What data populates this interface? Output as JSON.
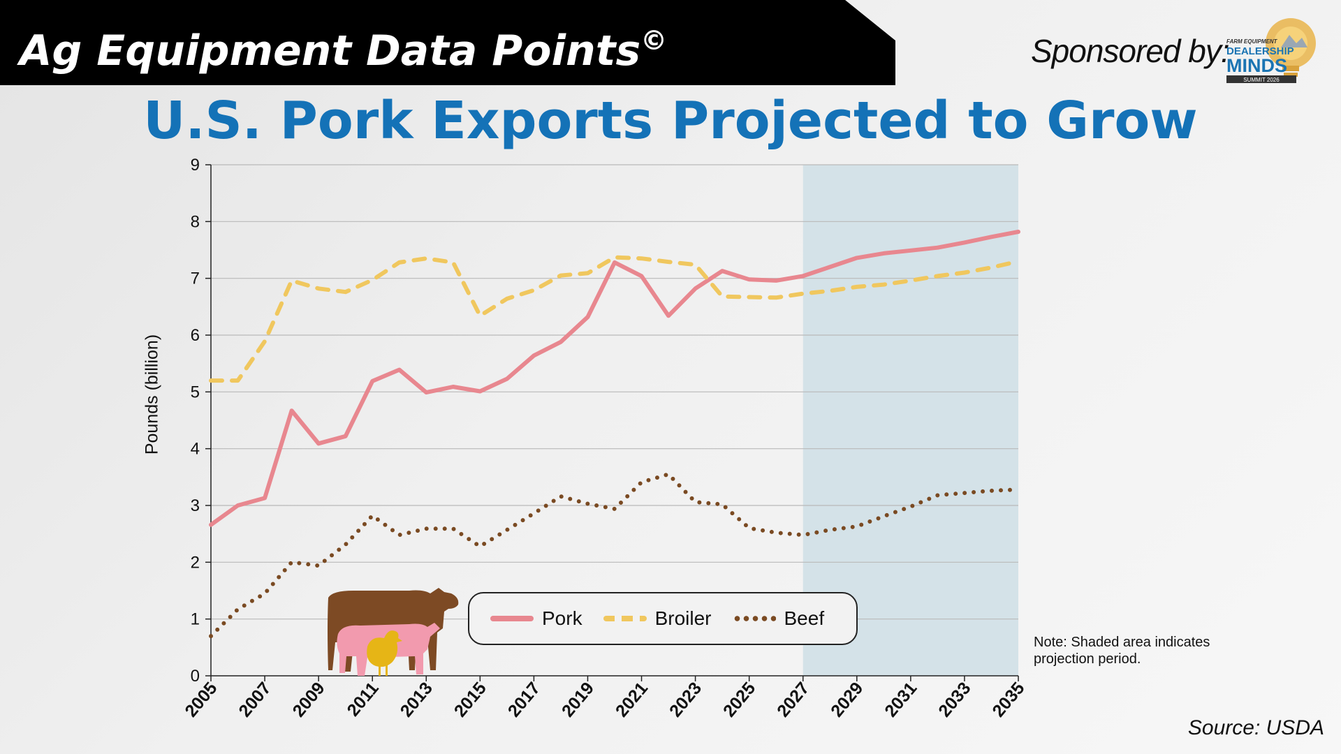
{
  "header": {
    "banner_title": "Ag Equipment Data Points",
    "banner_mark": "©",
    "sponsor_text": "Sponsored by:",
    "logo": {
      "line1": "FARM EQUIPMENT",
      "line2": "DEALERSHIP",
      "line3": "MINDS",
      "line4": "SUMMIT 2026",
      "icon": "lightbulb-gear-logo"
    }
  },
  "title": "U.S. Pork Exports Projected to Grow",
  "note": "Note: Shaded area indicates projection period.",
  "source": "Source: USDA",
  "colors": {
    "title": "#1472b7",
    "pork": "#e8878f",
    "broiler": "#f0c75e",
    "beef": "#7a4a22",
    "projection_shade": "#d4e2e8"
  },
  "decoration": {
    "icon": "livestock-silhouette-icon"
  },
  "chart_data": {
    "type": "line",
    "ylabel": "Pounds (billion)",
    "xlabel": "",
    "ylim": [
      0,
      9
    ],
    "yticks": [
      0,
      1,
      2,
      3,
      4,
      5,
      6,
      7,
      8,
      9
    ],
    "xlim": [
      2005,
      2035
    ],
    "xticks": [
      2005,
      2007,
      2009,
      2011,
      2013,
      2015,
      2017,
      2019,
      2021,
      2023,
      2025,
      2027,
      2029,
      2031,
      2033,
      2035
    ],
    "grid": "horizontal",
    "legend_position": "bottom-center",
    "projection_period": [
      2027,
      2035
    ],
    "x": [
      2005,
      2006,
      2007,
      2008,
      2009,
      2010,
      2011,
      2012,
      2013,
      2014,
      2015,
      2016,
      2017,
      2018,
      2019,
      2020,
      2021,
      2022,
      2023,
      2024,
      2025,
      2026,
      2027,
      2028,
      2029,
      2030,
      2031,
      2032,
      2033,
      2034,
      2035
    ],
    "series": [
      {
        "name": "Pork",
        "style": "solid",
        "values": [
          2.66,
          3.0,
          3.13,
          4.67,
          4.09,
          4.22,
          5.19,
          5.39,
          4.99,
          5.09,
          5.01,
          5.23,
          5.64,
          5.88,
          6.32,
          7.28,
          7.04,
          6.34,
          6.82,
          7.13,
          6.98,
          6.96,
          7.04,
          7.2,
          7.36,
          7.44,
          7.49,
          7.54,
          7.63,
          7.73,
          7.82
        ]
      },
      {
        "name": "Broiler",
        "style": "dashed",
        "values": [
          5.2,
          5.2,
          5.89,
          6.96,
          6.82,
          6.76,
          6.97,
          7.28,
          7.35,
          7.28,
          6.34,
          6.64,
          6.79,
          7.05,
          7.09,
          7.37,
          7.35,
          7.29,
          7.24,
          6.68,
          6.67,
          6.66,
          6.73,
          6.78,
          6.85,
          6.89,
          6.96,
          7.04,
          7.1,
          7.19,
          7.3
        ]
      },
      {
        "name": "Beef",
        "style": "dotted",
        "values": [
          0.7,
          1.17,
          1.45,
          2.0,
          1.94,
          2.31,
          2.82,
          2.48,
          2.59,
          2.59,
          2.28,
          2.57,
          2.86,
          3.16,
          3.03,
          2.94,
          3.41,
          3.55,
          3.06,
          3.02,
          2.6,
          2.52,
          2.48,
          2.57,
          2.63,
          2.81,
          2.98,
          3.18,
          3.22,
          3.26,
          3.28
        ]
      }
    ]
  }
}
